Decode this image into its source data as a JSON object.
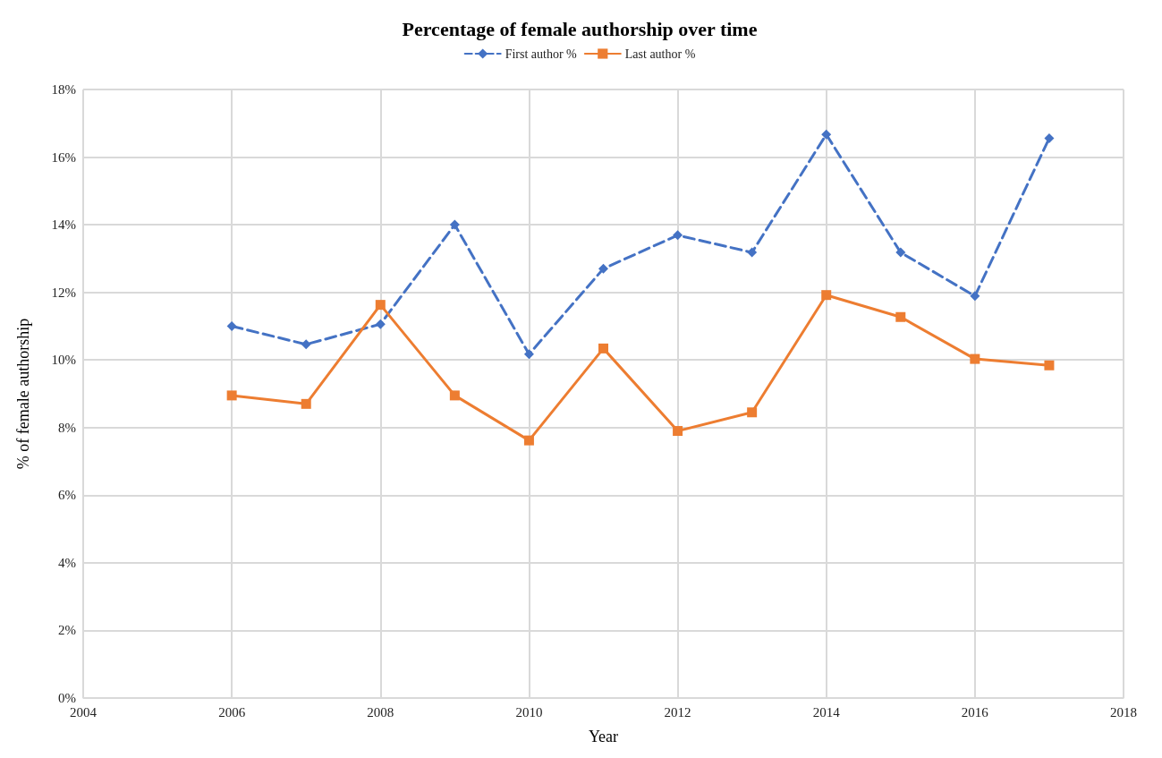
{
  "chart_data": {
    "type": "line",
    "title": "Percentage of female authorship over time",
    "xlabel": "Year",
    "ylabel": "% of female authorship",
    "x": [
      2006,
      2007,
      2008,
      2009,
      2010,
      2011,
      2012,
      2013,
      2014,
      2015,
      2016,
      2017
    ],
    "series": [
      {
        "name": "First author %",
        "color": "#4472c4",
        "marker": "diamond",
        "line_style": "dashed",
        "values": [
          11.0,
          10.46,
          11.06,
          14.0,
          10.17,
          12.7,
          13.69,
          13.18,
          16.67,
          13.18,
          11.89,
          16.56
        ]
      },
      {
        "name": "Last author %",
        "color": "#ed7d31",
        "marker": "square",
        "line_style": "solid",
        "values": [
          8.95,
          8.7,
          11.63,
          8.95,
          7.62,
          10.34,
          7.9,
          8.45,
          11.92,
          11.27,
          10.03,
          9.84
        ]
      }
    ],
    "xlim": [
      2004,
      2018
    ],
    "xticks": [
      2004,
      2006,
      2008,
      2010,
      2012,
      2014,
      2016,
      2018
    ],
    "ylim": [
      0,
      18
    ],
    "yticks": [
      {
        "value": 0,
        "label": "0%"
      },
      {
        "value": 2,
        "label": "2%"
      },
      {
        "value": 4,
        "label": "4%"
      },
      {
        "value": 6,
        "label": "6%"
      },
      {
        "value": 8,
        "label": "8%"
      },
      {
        "value": 10,
        "label": "10%"
      },
      {
        "value": 12,
        "label": "12%"
      },
      {
        "value": 14,
        "label": "14%"
      },
      {
        "value": 16,
        "label": "16%"
      },
      {
        "value": 18,
        "label": "18%"
      }
    ],
    "grid": true,
    "legend": "top"
  }
}
